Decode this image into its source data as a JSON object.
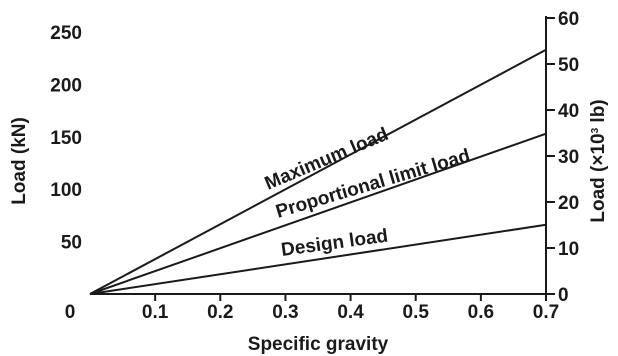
{
  "chart_data": {
    "type": "line",
    "xlabel": "Specific gravity",
    "ylabel": "Load (kN)",
    "y2label_prefix": "Load (×10",
    "y2label_exp": "3",
    "y2label_suffix": " lb)",
    "xlim": [
      0,
      0.7
    ],
    "ylim": [
      0,
      250
    ],
    "y2lim": [
      0,
      60
    ],
    "x_ticks": [
      "0",
      "0.1",
      "0.2",
      "0.3",
      "0.4",
      "0.5",
      "0.6",
      "0.7"
    ],
    "y_ticks": [
      "0",
      "50",
      "100",
      "150",
      "200",
      "250"
    ],
    "y2_ticks": [
      "0",
      "10",
      "20",
      "30",
      "40",
      "50",
      "60"
    ],
    "grid": false,
    "legend": "none",
    "series": [
      {
        "name": "Maximum load",
        "x": [
          0,
          0.7
        ],
        "y": [
          0,
          233
        ]
      },
      {
        "name": "Proportional limit load",
        "x": [
          0,
          0.7
        ],
        "y": [
          0,
          153
        ]
      },
      {
        "name": "Design load",
        "x": [
          0,
          0.7
        ],
        "y": [
          0,
          66
        ]
      }
    ]
  }
}
